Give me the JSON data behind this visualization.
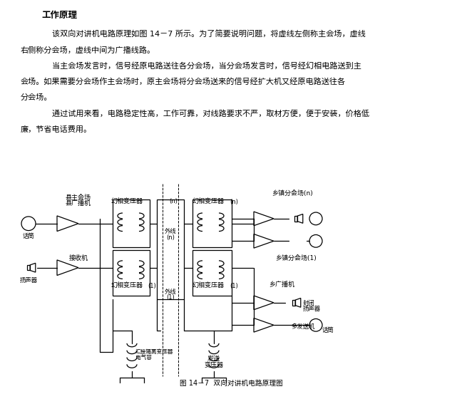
{
  "title": "工作原理",
  "para1": "    该双向对讲机电路原理如图 14）7 所示。为了简要说明问题，将虚线左侧称主会场，虚线右侧称分会场，虚线中间为广播线路。",
  "para2": "    当主会场发言时，信号经原电路送往各分会场，当分会场发言时，信号经幻相电路送到主会场。如果需要分会场作主会场时，原主会场将分会场送来的信号经扩大机又经原电路送往各分会场。",
  "para3": "    通过试用来看，电路稳定性高，工作可靠，对线路要求不严，取材方便，便于安装，价格低廉，节省电话费用。",
  "caption": "图 14－7  双向对讲机电路原理图",
  "bg_color": "#ffffff",
  "text_color": "#000000"
}
